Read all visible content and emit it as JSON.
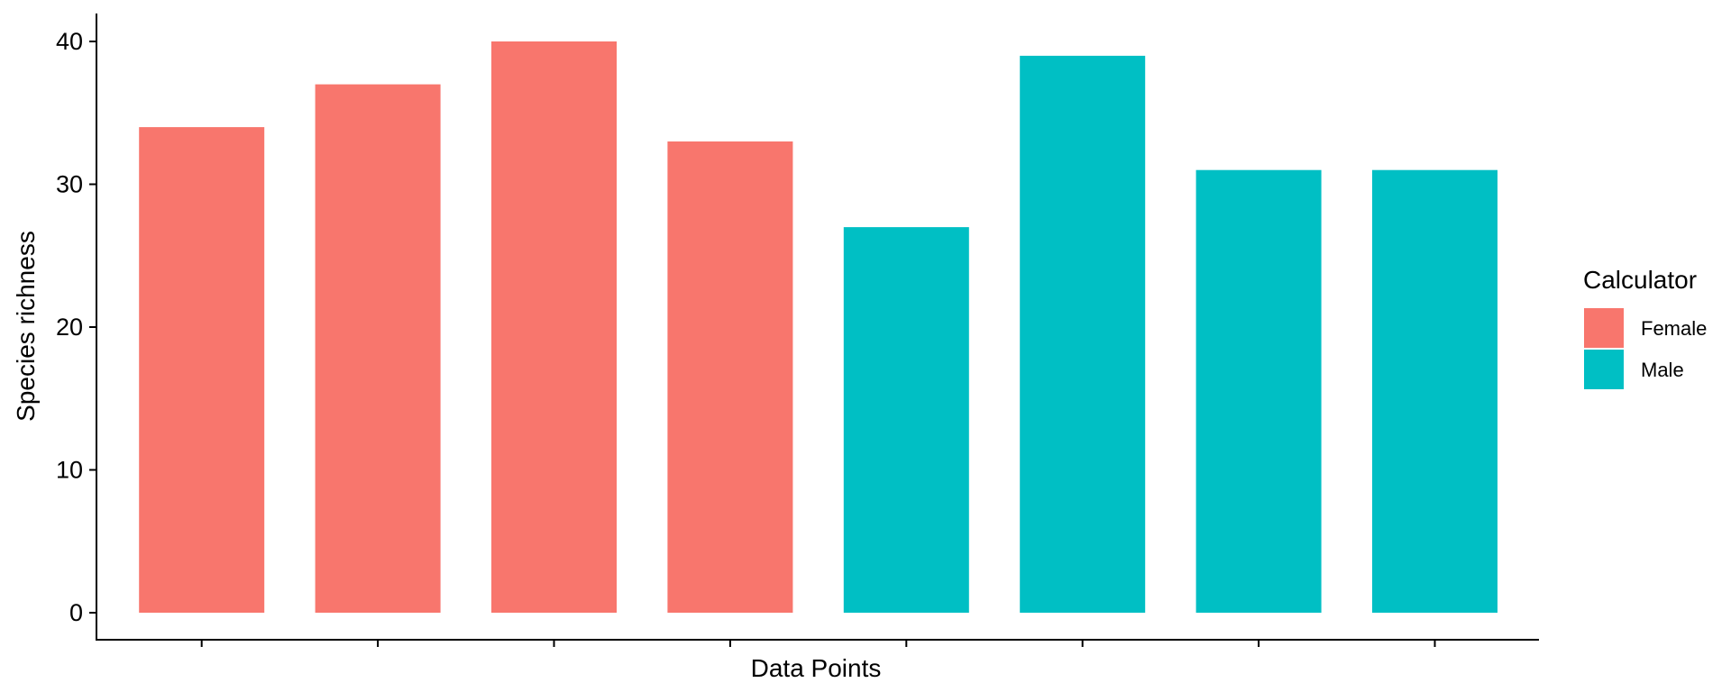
{
  "chart_data": {
    "type": "bar",
    "title": "",
    "xlabel": "Data Points",
    "ylabel": "Species richness",
    "ylim": [
      0,
      42
    ],
    "yticks": [
      0,
      10,
      20,
      30,
      40
    ],
    "grid": false,
    "categories": [
      "",
      "",
      "",
      "",
      "",
      "",
      "",
      ""
    ],
    "values": [
      34,
      37,
      40,
      33,
      27,
      39,
      31,
      31
    ],
    "groups": [
      "Female",
      "Female",
      "Female",
      "Female",
      "Male",
      "Male",
      "Male",
      "Male"
    ],
    "legend": {
      "title": "Calculator",
      "placement": "right",
      "entries": [
        {
          "name": "Female",
          "color": "#F8766D"
        },
        {
          "name": "Male",
          "color": "#00BFC4"
        }
      ]
    }
  }
}
